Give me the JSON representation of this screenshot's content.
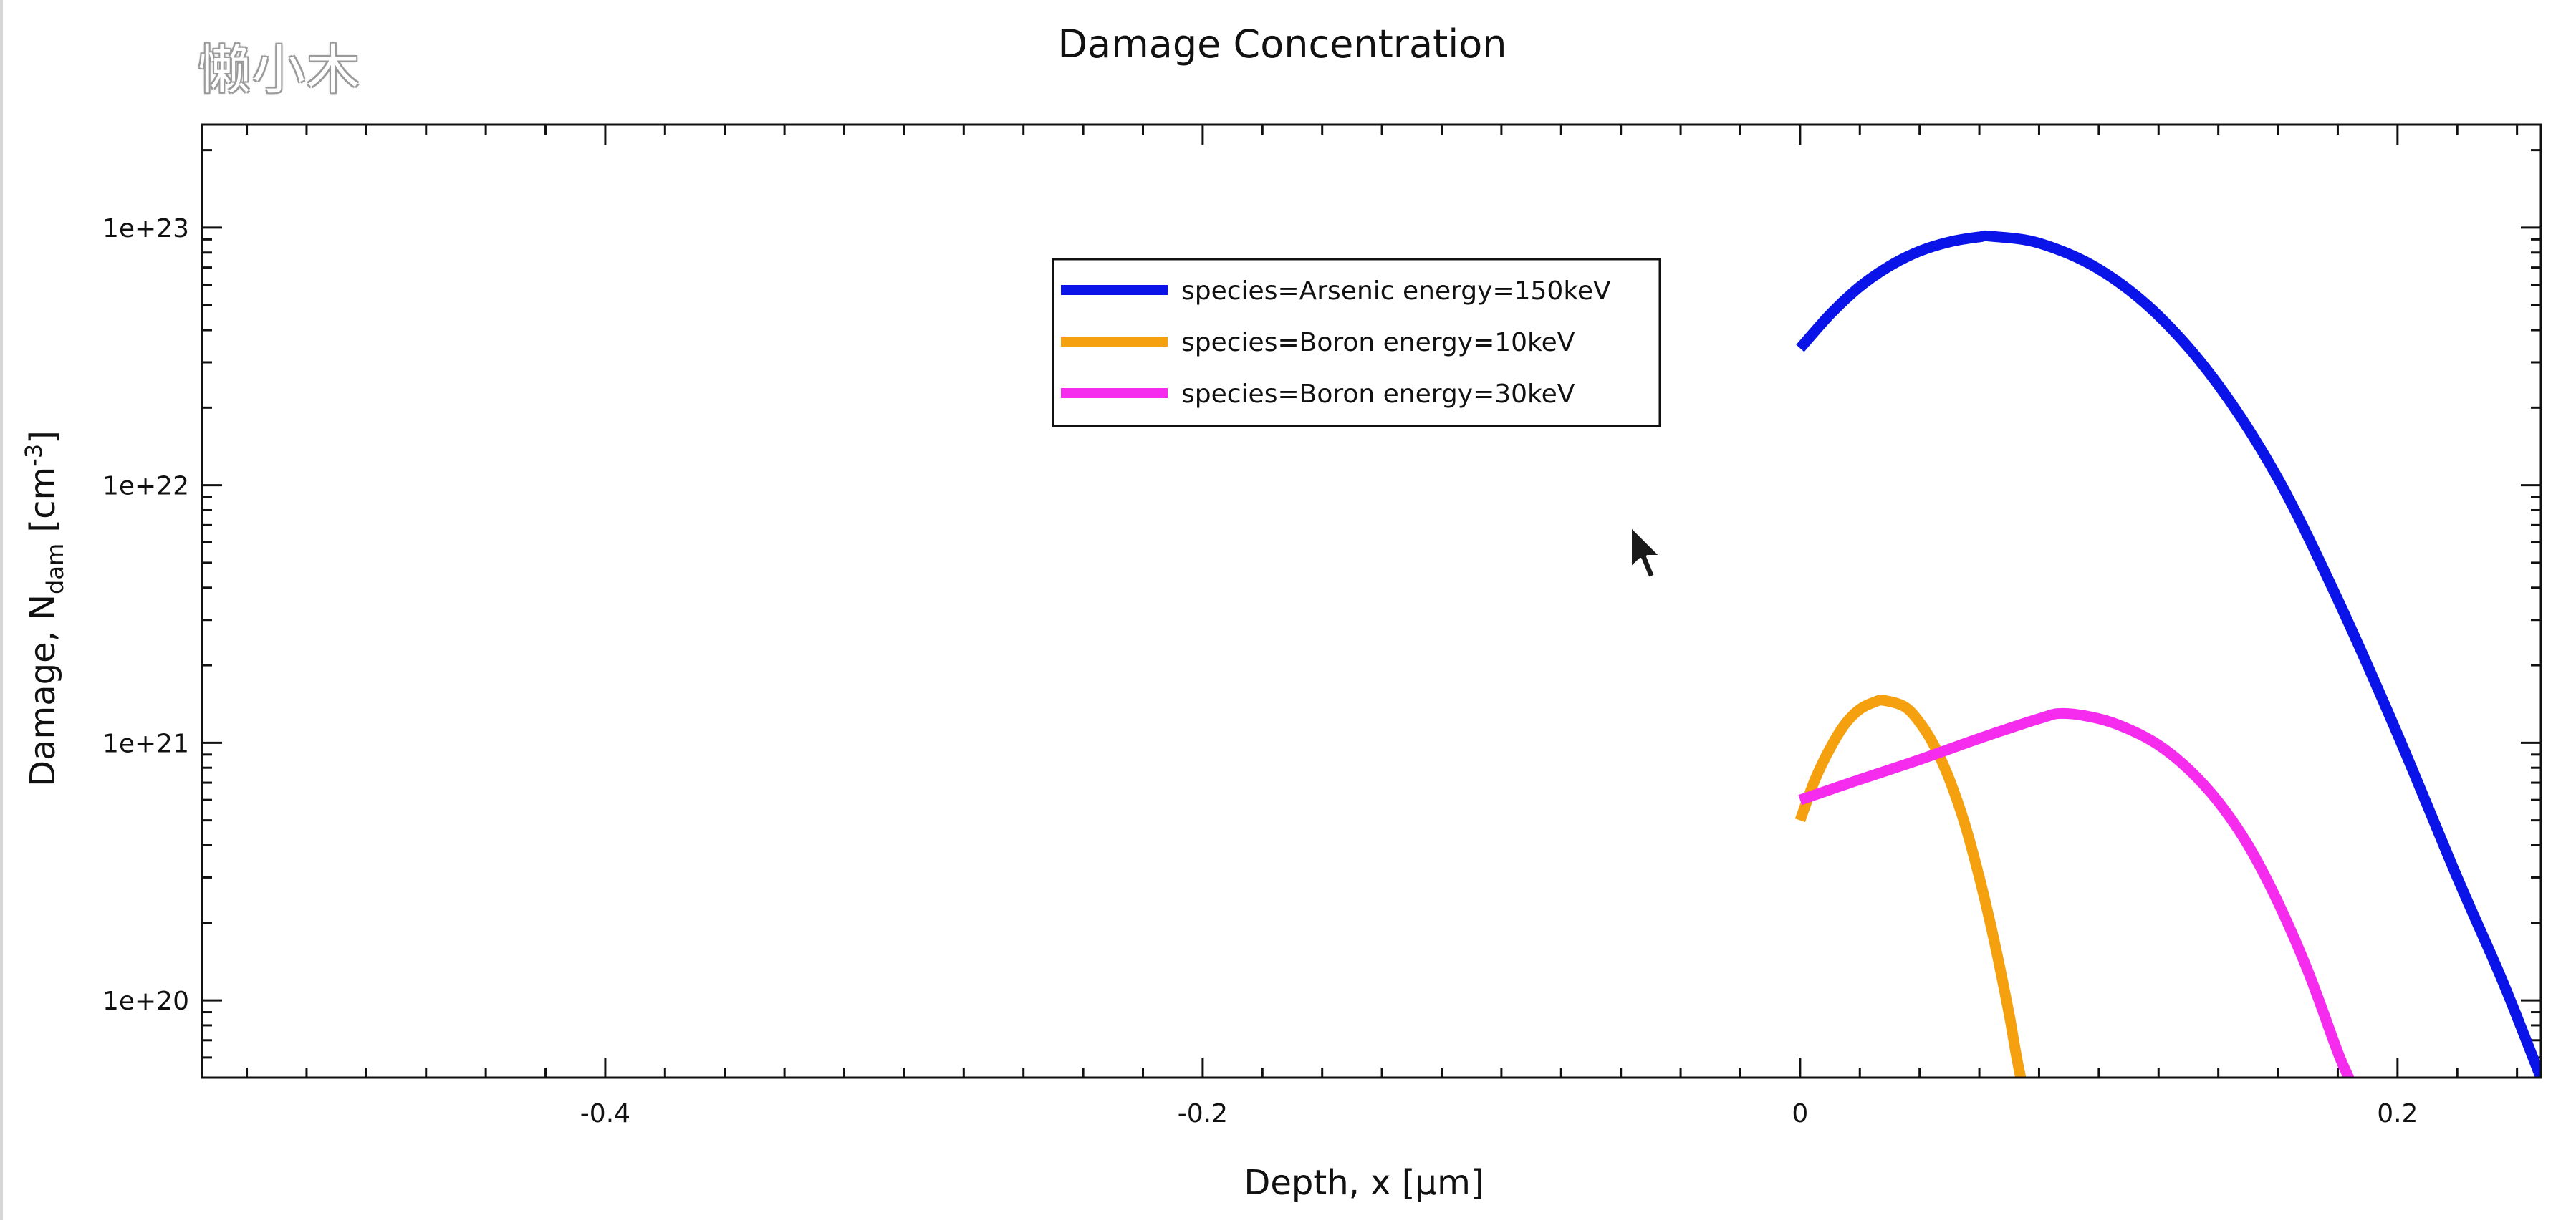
{
  "watermark": "懒小木",
  "chart_data": {
    "type": "line",
    "title": "Damage Concentration",
    "xlabel": "Depth, x [µm]",
    "ylabel": {
      "prefix": "Damage, N",
      "subscript": "dam",
      "unit_open": " [cm",
      "superscript": "-3",
      "unit_close": "]"
    },
    "xlim": [
      -0.535,
      0.248
    ],
    "ylim_log10": [
      19.7,
      23.4
    ],
    "y_scale": "log",
    "x_ticks": [
      {
        "value": -0.4,
        "label": "-0.4"
      },
      {
        "value": -0.2,
        "label": "-0.2"
      },
      {
        "value": 0,
        "label": "0"
      },
      {
        "value": 0.2,
        "label": "0.2"
      }
    ],
    "y_ticks": [
      {
        "exp": 20,
        "label": "1e+20"
      },
      {
        "exp": 21,
        "label": "1e+21"
      },
      {
        "exp": 22,
        "label": "1e+22"
      },
      {
        "exp": 23,
        "label": "1e+23"
      }
    ],
    "grid": false,
    "legend_position": "top-center",
    "series": [
      {
        "name": "species=Arsenic energy=150keV",
        "color": "#0a14e8",
        "x": [
          0,
          0.01,
          0.02,
          0.03,
          0.04,
          0.05,
          0.06,
          0.064,
          0.08,
          0.1,
          0.12,
          0.14,
          0.16,
          0.18,
          0.2,
          0.22,
          0.235,
          0.248
        ],
        "y": [
          3.4e+22,
          4.6e+22,
          5.9e+22,
          7.1e+22,
          8.1e+22,
          8.8e+22,
          9.2e+22,
          9.25e+22,
          8.7e+22,
          6.9e+22,
          4.55e+22,
          2.45e+22,
          1.06e+22,
          3.6e+21,
          1.08e+21,
          3e+20,
          1.2e+20,
          5e+19
        ]
      },
      {
        "name": "species=Boron energy=10keV",
        "color": "#f5a00f",
        "x": [
          0,
          0.005,
          0.01,
          0.015,
          0.02,
          0.025,
          0.028,
          0.035,
          0.04,
          0.045,
          0.05,
          0.055,
          0.06,
          0.065,
          0.07,
          0.073,
          0.078
        ],
        "y": [
          5e+20,
          7.2e+20,
          9.5e+20,
          1.18e+21,
          1.35e+21,
          1.44e+21,
          1.46e+21,
          1.38e+21,
          1.2e+21,
          9.7e+20,
          7.2e+20,
          4.9e+20,
          3e+20,
          1.7e+20,
          8.8e+19,
          5.6e+19,
          3e+19
        ]
      },
      {
        "name": "species=Boron energy=30keV",
        "color": "#f52cee",
        "x": [
          0,
          0.02,
          0.04,
          0.06,
          0.08,
          0.088,
          0.1,
          0.11,
          0.12,
          0.13,
          0.14,
          0.15,
          0.16,
          0.17,
          0.18,
          0.184,
          0.19
        ],
        "y": [
          6e+20,
          7.2e+20,
          8.6e+20,
          1.04e+21,
          1.24e+21,
          1.3e+21,
          1.24e+21,
          1.13e+21,
          9.8e+20,
          7.9e+20,
          5.9e+20,
          4e+20,
          2.4e+20,
          1.3e+20,
          6.3e+19,
          4.9e+19,
          3.3e+19
        ]
      }
    ]
  }
}
